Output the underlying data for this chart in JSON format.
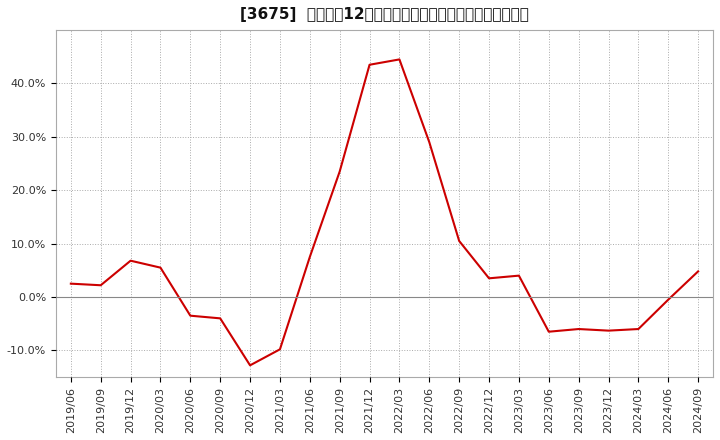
{
  "title": "[3675]  売上高の12か月移動合計の対前年同期増減率の推移",
  "line_color": "#cc0000",
  "background_color": "#ffffff",
  "grid_color": "#aaaaaa",
  "dates": [
    "2019/06",
    "2019/09",
    "2019/12",
    "2020/03",
    "2020/06",
    "2020/09",
    "2020/12",
    "2021/03",
    "2021/06",
    "2021/09",
    "2021/12",
    "2022/03",
    "2022/06",
    "2022/09",
    "2022/12",
    "2023/03",
    "2023/06",
    "2023/09",
    "2023/12",
    "2024/03",
    "2024/06",
    "2024/09"
  ],
  "values": [
    0.025,
    0.022,
    0.068,
    0.055,
    -0.035,
    -0.04,
    -0.128,
    -0.098,
    0.075,
    0.235,
    0.435,
    0.445,
    0.29,
    0.105,
    0.035,
    0.04,
    -0.065,
    -0.06,
    -0.063,
    -0.06,
    -0.005,
    0.048
  ],
  "ylim": [
    -0.15,
    0.5
  ],
  "yticks": [
    -0.1,
    0.0,
    0.1,
    0.2,
    0.3,
    0.4
  ],
  "tick_fontsize": 8,
  "title_fontsize": 11
}
